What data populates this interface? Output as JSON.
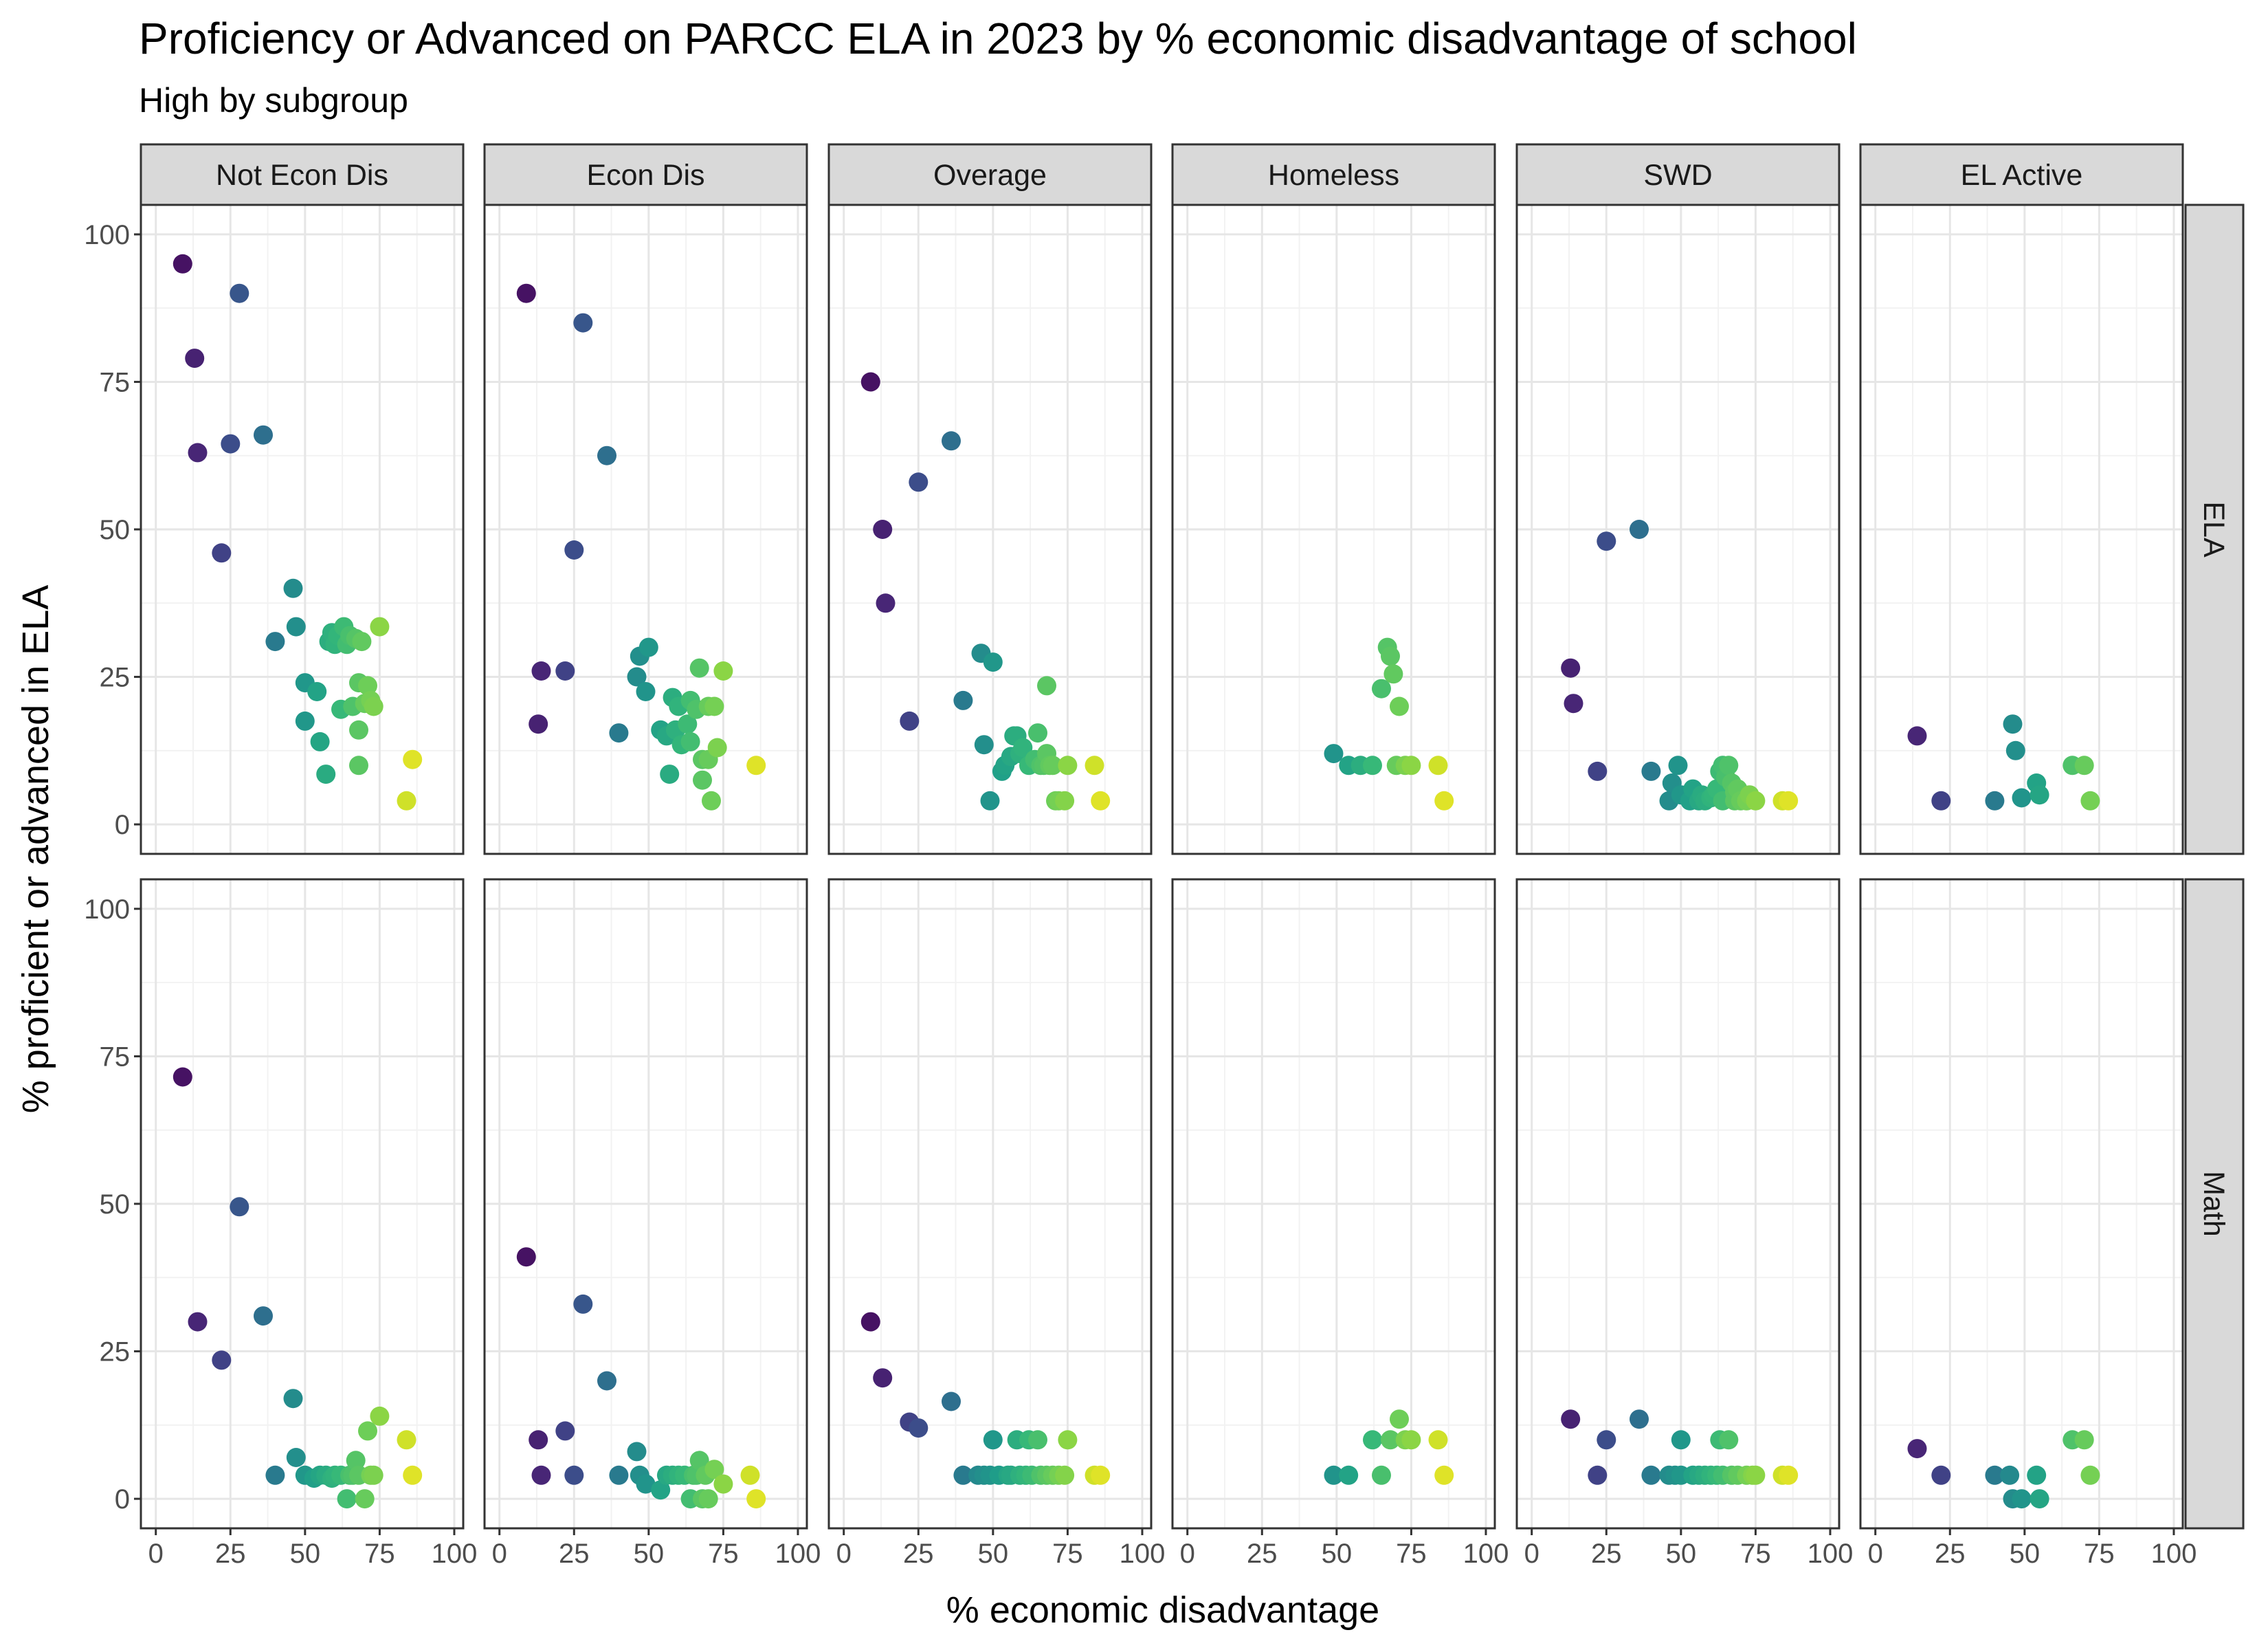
{
  "chart_data": {
    "type": "scatter",
    "title": "Proficiency or Advanced on PARCC ELA in 2023 by % economic disadvantage of school",
    "subtitle": "High by subgroup",
    "xlabel": "% economic disadvantage",
    "ylabel": "% proficient or advanced in ELA",
    "xlim": [
      -5,
      103
    ],
    "ylim": [
      -5,
      105
    ],
    "x_ticks": [
      0,
      25,
      50,
      75,
      100
    ],
    "y_ticks": [
      0,
      25,
      50,
      75,
      100
    ],
    "grid": true,
    "legend": "none",
    "color_scale": "viridis by % economic disadvantage",
    "viridis": [
      "#440154",
      "#482878",
      "#3e4989",
      "#31688e",
      "#26828e",
      "#1f9e89",
      "#35b779",
      "#6ece58",
      "#b5de2b",
      "#fde725"
    ],
    "columns": [
      "Not Econ Dis",
      "Econ Dis",
      "Overage",
      "Homeless",
      "SWD",
      "EL Active"
    ],
    "rows": [
      "ELA",
      "Math"
    ],
    "panels": [
      {
        "row": "ELA",
        "column": "Not Econ Dis",
        "points": [
          [
            9,
            95
          ],
          [
            13,
            79
          ],
          [
            14,
            63
          ],
          [
            22,
            46
          ],
          [
            25,
            64.5
          ],
          [
            28,
            90
          ],
          [
            36,
            66
          ],
          [
            40,
            31
          ],
          [
            46,
            40
          ],
          [
            47,
            33.5
          ],
          [
            50,
            24
          ],
          [
            50,
            17.5
          ],
          [
            54,
            22.5
          ],
          [
            55,
            14
          ],
          [
            57,
            8.5
          ],
          [
            58,
            31
          ],
          [
            59,
            32.5
          ],
          [
            60,
            30.5
          ],
          [
            61,
            32
          ],
          [
            62,
            19.5
          ],
          [
            63,
            33.5
          ],
          [
            64,
            30.5
          ],
          [
            65,
            32
          ],
          [
            66,
            20
          ],
          [
            67,
            31.5
          ],
          [
            68,
            24
          ],
          [
            68,
            16
          ],
          [
            68,
            10
          ],
          [
            69,
            31
          ],
          [
            70,
            20.5
          ],
          [
            71,
            23.5
          ],
          [
            72,
            21
          ],
          [
            73,
            20
          ],
          [
            75,
            33.5
          ],
          [
            84,
            4
          ],
          [
            86,
            11
          ]
        ]
      },
      {
        "row": "ELA",
        "column": "Econ Dis",
        "points": [
          [
            9,
            90
          ],
          [
            13,
            17
          ],
          [
            14,
            26
          ],
          [
            22,
            26
          ],
          [
            25,
            46.5
          ],
          [
            28,
            85
          ],
          [
            36,
            62.5
          ],
          [
            40,
            15.5
          ],
          [
            46,
            25
          ],
          [
            47,
            28.5
          ],
          [
            49,
            22.5
          ],
          [
            50,
            30
          ],
          [
            54,
            16
          ],
          [
            56,
            15
          ],
          [
            57,
            8.5
          ],
          [
            58,
            21.5
          ],
          [
            59,
            16
          ],
          [
            60,
            20
          ],
          [
            61,
            13.5
          ],
          [
            63,
            17
          ],
          [
            64,
            21
          ],
          [
            64,
            14
          ],
          [
            66,
            19.5
          ],
          [
            67,
            26.5
          ],
          [
            68,
            11
          ],
          [
            68,
            7.5
          ],
          [
            70,
            20
          ],
          [
            70,
            11
          ],
          [
            71,
            4
          ],
          [
            72,
            20
          ],
          [
            73,
            13
          ],
          [
            75,
            26
          ],
          [
            86,
            10
          ]
        ]
      },
      {
        "row": "ELA",
        "column": "Overage",
        "points": [
          [
            9,
            75
          ],
          [
            13,
            50
          ],
          [
            14,
            37.5
          ],
          [
            22,
            17.5
          ],
          [
            25,
            58
          ],
          [
            36,
            65
          ],
          [
            40,
            21
          ],
          [
            46,
            29
          ],
          [
            47,
            13.5
          ],
          [
            49,
            4
          ],
          [
            50,
            27.5
          ],
          [
            53,
            9
          ],
          [
            54,
            10
          ],
          [
            56,
            11.5
          ],
          [
            57,
            15
          ],
          [
            58,
            15
          ],
          [
            59,
            12
          ],
          [
            60,
            13
          ],
          [
            62,
            10
          ],
          [
            64,
            11
          ],
          [
            65,
            15.5
          ],
          [
            66,
            10
          ],
          [
            67,
            10
          ],
          [
            68,
            23.5
          ],
          [
            68,
            12
          ],
          [
            69,
            10
          ],
          [
            70,
            10
          ],
          [
            71,
            4
          ],
          [
            72,
            4
          ],
          [
            74,
            4
          ],
          [
            75,
            10
          ],
          [
            84,
            10
          ],
          [
            86,
            4
          ]
        ]
      },
      {
        "row": "ELA",
        "column": "Homeless",
        "points": [
          [
            49,
            12
          ],
          [
            54,
            10
          ],
          [
            58,
            10
          ],
          [
            62,
            10
          ],
          [
            65,
            23
          ],
          [
            67,
            30
          ],
          [
            68,
            28.5
          ],
          [
            69,
            25.5
          ],
          [
            70,
            10
          ],
          [
            71,
            20
          ],
          [
            73,
            10
          ],
          [
            75,
            10
          ],
          [
            84,
            10
          ],
          [
            86,
            4
          ]
        ]
      },
      {
        "row": "ELA",
        "column": "SWD",
        "points": [
          [
            13,
            26.5
          ],
          [
            14,
            20.5
          ],
          [
            22,
            9
          ],
          [
            25,
            48
          ],
          [
            36,
            50
          ],
          [
            40,
            9
          ],
          [
            46,
            4
          ],
          [
            47,
            7
          ],
          [
            49,
            10
          ],
          [
            50,
            5
          ],
          [
            53,
            4
          ],
          [
            54,
            6
          ],
          [
            56,
            4
          ],
          [
            57,
            5
          ],
          [
            58,
            4
          ],
          [
            60,
            4.5
          ],
          [
            61,
            5
          ],
          [
            62,
            6
          ],
          [
            63,
            9
          ],
          [
            64,
            4
          ],
          [
            64,
            10
          ],
          [
            65,
            8
          ],
          [
            66,
            10
          ],
          [
            67,
            7
          ],
          [
            68,
            5.5
          ],
          [
            68,
            4
          ],
          [
            69,
            6
          ],
          [
            70,
            4
          ],
          [
            72,
            4
          ],
          [
            73,
            5
          ],
          [
            75,
            4
          ],
          [
            84,
            4
          ],
          [
            86,
            4
          ]
        ]
      },
      {
        "row": "ELA",
        "column": "EL Active",
        "points": [
          [
            14,
            15
          ],
          [
            22,
            4
          ],
          [
            40,
            4
          ],
          [
            46,
            17
          ],
          [
            47,
            12.5
          ],
          [
            49,
            4.5
          ],
          [
            54,
            7
          ],
          [
            55,
            5
          ],
          [
            66,
            10
          ],
          [
            70,
            10
          ],
          [
            72,
            4
          ]
        ]
      },
      {
        "row": "Math",
        "column": "Not Econ Dis",
        "points": [
          [
            9,
            71.5
          ],
          [
            14,
            30
          ],
          [
            22,
            23.5
          ],
          [
            28,
            49.5
          ],
          [
            36,
            31
          ],
          [
            40,
            4
          ],
          [
            46,
            17
          ],
          [
            47,
            7
          ],
          [
            50,
            4
          ],
          [
            53,
            3.5
          ],
          [
            55,
            4
          ],
          [
            57,
            4
          ],
          [
            59,
            3.5
          ],
          [
            60,
            4
          ],
          [
            62,
            4
          ],
          [
            64,
            0
          ],
          [
            65,
            4
          ],
          [
            66,
            4
          ],
          [
            67,
            6.5
          ],
          [
            68,
            4
          ],
          [
            70,
            0
          ],
          [
            71,
            11.5
          ],
          [
            72,
            4
          ],
          [
            73,
            4
          ],
          [
            75,
            14
          ],
          [
            84,
            10
          ],
          [
            86,
            4
          ]
        ]
      },
      {
        "row": "Math",
        "column": "Econ Dis",
        "points": [
          [
            9,
            41
          ],
          [
            13,
            10
          ],
          [
            14,
            4
          ],
          [
            22,
            11.5
          ],
          [
            25,
            4
          ],
          [
            28,
            33
          ],
          [
            36,
            20
          ],
          [
            40,
            4
          ],
          [
            46,
            8
          ],
          [
            47,
            4
          ],
          [
            49,
            2.5
          ],
          [
            54,
            1.5
          ],
          [
            56,
            4
          ],
          [
            58,
            4
          ],
          [
            60,
            4
          ],
          [
            62,
            4
          ],
          [
            64,
            0
          ],
          [
            65,
            4
          ],
          [
            66,
            4
          ],
          [
            67,
            6.5
          ],
          [
            68,
            0
          ],
          [
            69,
            4
          ],
          [
            70,
            0
          ],
          [
            72,
            5
          ],
          [
            75,
            2.5
          ],
          [
            84,
            4
          ],
          [
            86,
            0
          ]
        ]
      },
      {
        "row": "Math",
        "column": "Overage",
        "points": [
          [
            9,
            30
          ],
          [
            13,
            20.5
          ],
          [
            22,
            13
          ],
          [
            25,
            12
          ],
          [
            36,
            16.5
          ],
          [
            40,
            4
          ],
          [
            45,
            4
          ],
          [
            47,
            4
          ],
          [
            49,
            4
          ],
          [
            50,
            10
          ],
          [
            52,
            4
          ],
          [
            55,
            4
          ],
          [
            56,
            4
          ],
          [
            58,
            10
          ],
          [
            59,
            4
          ],
          [
            61,
            4
          ],
          [
            62,
            10
          ],
          [
            63,
            4
          ],
          [
            65,
            10
          ],
          [
            66,
            4
          ],
          [
            68,
            4
          ],
          [
            70,
            4
          ],
          [
            72,
            4
          ],
          [
            74,
            4
          ],
          [
            75,
            10
          ],
          [
            84,
            4
          ],
          [
            86,
            4
          ]
        ]
      },
      {
        "row": "Math",
        "column": "Homeless",
        "points": [
          [
            49,
            4
          ],
          [
            54,
            4
          ],
          [
            62,
            10
          ],
          [
            65,
            4
          ],
          [
            68,
            10
          ],
          [
            71,
            13.5
          ],
          [
            73,
            10
          ],
          [
            75,
            10
          ],
          [
            84,
            10
          ],
          [
            86,
            4
          ]
        ]
      },
      {
        "row": "Math",
        "column": "SWD",
        "points": [
          [
            13,
            13.5
          ],
          [
            22,
            4
          ],
          [
            25,
            10
          ],
          [
            36,
            13.5
          ],
          [
            40,
            4
          ],
          [
            46,
            4
          ],
          [
            48,
            4
          ],
          [
            50,
            10
          ],
          [
            50,
            4
          ],
          [
            54,
            4
          ],
          [
            56,
            4
          ],
          [
            58,
            4
          ],
          [
            60,
            4
          ],
          [
            62,
            4
          ],
          [
            63,
            10
          ],
          [
            64,
            4
          ],
          [
            66,
            10
          ],
          [
            67,
            4
          ],
          [
            69,
            4
          ],
          [
            72,
            4
          ],
          [
            74,
            4
          ],
          [
            75,
            4
          ],
          [
            84,
            4
          ],
          [
            86,
            4
          ]
        ]
      },
      {
        "row": "Math",
        "column": "EL Active",
        "points": [
          [
            14,
            8.5
          ],
          [
            22,
            4
          ],
          [
            40,
            4
          ],
          [
            45,
            4
          ],
          [
            46,
            0
          ],
          [
            49,
            0
          ],
          [
            54,
            4
          ],
          [
            55,
            0
          ],
          [
            66,
            10
          ],
          [
            70,
            10
          ],
          [
            72,
            4
          ]
        ]
      }
    ]
  }
}
